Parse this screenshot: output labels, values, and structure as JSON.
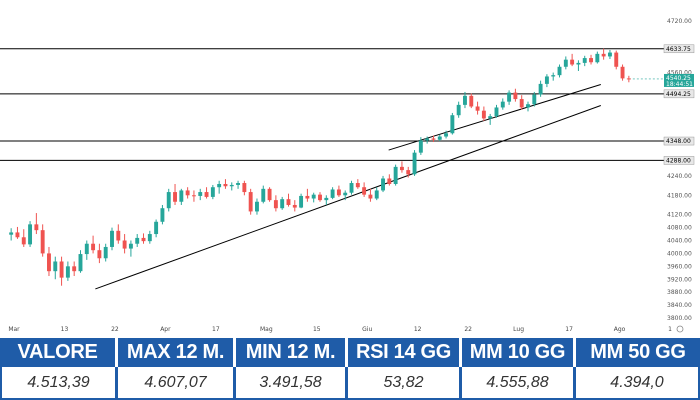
{
  "chart_data": {
    "type": "candlestick",
    "ylim": [
      3800,
      4760
    ],
    "y_ticks": [
      "4720.00",
      "4560.00",
      "4240.00",
      "4180.00",
      "4120.00",
      "4080.00",
      "4040.00",
      "4000.00",
      "3960.00",
      "3920.00",
      "3880.00",
      "3840.00",
      "3800.00"
    ],
    "x_ticks": [
      "Mar",
      "13",
      "22",
      "Apr",
      "17",
      "Mag",
      "15",
      "Giu",
      "12",
      "22",
      "Lug",
      "17",
      "Ago",
      "1"
    ],
    "levels": [
      {
        "value": 4633.75,
        "label": "4633.75"
      },
      {
        "value": 4494.25,
        "label": "4494.25"
      },
      {
        "value": 4348.0,
        "label": "4348.00"
      },
      {
        "value": 4288.0,
        "label": "4288.00"
      }
    ],
    "last_price": {
      "value": 4540.25,
      "label": "4540.25",
      "sublabel": "18:44:51",
      "color": "#26a69a"
    },
    "trendlines": [
      {
        "from": [
          0.14,
          3890
        ],
        "to": [
          0.95,
          4458
        ]
      },
      {
        "from": [
          0.61,
          4320
        ],
        "to": [
          0.95,
          4523
        ]
      }
    ],
    "candles": [
      {
        "o": 4058,
        "h": 4078,
        "l": 4040,
        "c": 4065
      },
      {
        "o": 4065,
        "h": 4082,
        "l": 4045,
        "c": 4050
      },
      {
        "o": 4050,
        "h": 4075,
        "l": 4020,
        "c": 4028
      },
      {
        "o": 4028,
        "h": 4100,
        "l": 4020,
        "c": 4090
      },
      {
        "o": 4090,
        "h": 4125,
        "l": 4060,
        "c": 4072
      },
      {
        "o": 4072,
        "h": 4090,
        "l": 3990,
        "c": 4000
      },
      {
        "o": 4000,
        "h": 4020,
        "l": 3930,
        "c": 3945
      },
      {
        "o": 3945,
        "h": 3990,
        "l": 3920,
        "c": 3975
      },
      {
        "o": 3975,
        "h": 3990,
        "l": 3900,
        "c": 3925
      },
      {
        "o": 3925,
        "h": 3975,
        "l": 3915,
        "c": 3960
      },
      {
        "o": 3960,
        "h": 3975,
        "l": 3930,
        "c": 3945
      },
      {
        "o": 3945,
        "h": 4010,
        "l": 3940,
        "c": 3998
      },
      {
        "o": 3998,
        "h": 4040,
        "l": 3980,
        "c": 4030
      },
      {
        "o": 4030,
        "h": 4055,
        "l": 4000,
        "c": 4010
      },
      {
        "o": 4010,
        "h": 4030,
        "l": 3970,
        "c": 3985
      },
      {
        "o": 3985,
        "h": 4030,
        "l": 3975,
        "c": 4020
      },
      {
        "o": 4020,
        "h": 4080,
        "l": 4010,
        "c": 4070
      },
      {
        "o": 4070,
        "h": 4090,
        "l": 4030,
        "c": 4040
      },
      {
        "o": 4040,
        "h": 4060,
        "l": 4000,
        "c": 4015
      },
      {
        "o": 4015,
        "h": 4040,
        "l": 3990,
        "c": 4030
      },
      {
        "o": 4030,
        "h": 4060,
        "l": 4020,
        "c": 4048
      },
      {
        "o": 4048,
        "h": 4062,
        "l": 4030,
        "c": 4038
      },
      {
        "o": 4038,
        "h": 4070,
        "l": 4030,
        "c": 4060
      },
      {
        "o": 4060,
        "h": 4105,
        "l": 4050,
        "c": 4098
      },
      {
        "o": 4098,
        "h": 4150,
        "l": 4090,
        "c": 4140
      },
      {
        "o": 4140,
        "h": 4200,
        "l": 4130,
        "c": 4190
      },
      {
        "o": 4190,
        "h": 4215,
        "l": 4150,
        "c": 4160
      },
      {
        "o": 4160,
        "h": 4200,
        "l": 4150,
        "c": 4195
      },
      {
        "o": 4195,
        "h": 4205,
        "l": 4170,
        "c": 4180
      },
      {
        "o": 4180,
        "h": 4195,
        "l": 4160,
        "c": 4178
      },
      {
        "o": 4178,
        "h": 4200,
        "l": 4165,
        "c": 4190
      },
      {
        "o": 4190,
        "h": 4205,
        "l": 4170,
        "c": 4175
      },
      {
        "o": 4175,
        "h": 4212,
        "l": 4168,
        "c": 4205
      },
      {
        "o": 4205,
        "h": 4225,
        "l": 4185,
        "c": 4215
      },
      {
        "o": 4215,
        "h": 4230,
        "l": 4200,
        "c": 4208
      },
      {
        "o": 4208,
        "h": 4220,
        "l": 4195,
        "c": 4212
      },
      {
        "o": 4212,
        "h": 4225,
        "l": 4200,
        "c": 4218
      },
      {
        "o": 4218,
        "h": 4225,
        "l": 4180,
        "c": 4190
      },
      {
        "o": 4190,
        "h": 4200,
        "l": 4120,
        "c": 4130
      },
      {
        "o": 4130,
        "h": 4170,
        "l": 4120,
        "c": 4160
      },
      {
        "o": 4160,
        "h": 4210,
        "l": 4155,
        "c": 4200
      },
      {
        "o": 4200,
        "h": 4205,
        "l": 4160,
        "c": 4165
      },
      {
        "o": 4165,
        "h": 4180,
        "l": 4130,
        "c": 4140
      },
      {
        "o": 4140,
        "h": 4175,
        "l": 4135,
        "c": 4168
      },
      {
        "o": 4168,
        "h": 4185,
        "l": 4145,
        "c": 4150
      },
      {
        "o": 4150,
        "h": 4165,
        "l": 4130,
        "c": 4142
      },
      {
        "o": 4142,
        "h": 4185,
        "l": 4140,
        "c": 4178
      },
      {
        "o": 4178,
        "h": 4200,
        "l": 4160,
        "c": 4170
      },
      {
        "o": 4170,
        "h": 4188,
        "l": 4158,
        "c": 4182
      },
      {
        "o": 4182,
        "h": 4190,
        "l": 4160,
        "c": 4165
      },
      {
        "o": 4165,
        "h": 4180,
        "l": 4150,
        "c": 4172
      },
      {
        "o": 4172,
        "h": 4205,
        "l": 4168,
        "c": 4198
      },
      {
        "o": 4198,
        "h": 4210,
        "l": 4175,
        "c": 4180
      },
      {
        "o": 4180,
        "h": 4195,
        "l": 4165,
        "c": 4188
      },
      {
        "o": 4188,
        "h": 4225,
        "l": 4182,
        "c": 4218
      },
      {
        "o": 4218,
        "h": 4230,
        "l": 4200,
        "c": 4205
      },
      {
        "o": 4205,
        "h": 4220,
        "l": 4175,
        "c": 4182
      },
      {
        "o": 4182,
        "h": 4200,
        "l": 4160,
        "c": 4170
      },
      {
        "o": 4170,
        "h": 4205,
        "l": 4165,
        "c": 4195
      },
      {
        "o": 4195,
        "h": 4240,
        "l": 4190,
        "c": 4232
      },
      {
        "o": 4232,
        "h": 4245,
        "l": 4210,
        "c": 4215
      },
      {
        "o": 4215,
        "h": 4275,
        "l": 4210,
        "c": 4268
      },
      {
        "o": 4268,
        "h": 4285,
        "l": 4250,
        "c": 4258
      },
      {
        "o": 4258,
        "h": 4268,
        "l": 4235,
        "c": 4245
      },
      {
        "o": 4245,
        "h": 4320,
        "l": 4240,
        "c": 4312
      },
      {
        "o": 4312,
        "h": 4360,
        "l": 4305,
        "c": 4350
      },
      {
        "o": 4350,
        "h": 4362,
        "l": 4340,
        "c": 4356
      },
      {
        "o": 4356,
        "h": 4365,
        "l": 4345,
        "c": 4352
      },
      {
        "o": 4352,
        "h": 4368,
        "l": 4348,
        "c": 4362
      },
      {
        "o": 4362,
        "h": 4380,
        "l": 4356,
        "c": 4372
      },
      {
        "o": 4372,
        "h": 4435,
        "l": 4368,
        "c": 4428
      },
      {
        "o": 4428,
        "h": 4470,
        "l": 4420,
        "c": 4460
      },
      {
        "o": 4460,
        "h": 4500,
        "l": 4450,
        "c": 4488
      },
      {
        "o": 4488,
        "h": 4495,
        "l": 4450,
        "c": 4455
      },
      {
        "o": 4455,
        "h": 4470,
        "l": 4430,
        "c": 4442
      },
      {
        "o": 4442,
        "h": 4455,
        "l": 4410,
        "c": 4418
      },
      {
        "o": 4418,
        "h": 4432,
        "l": 4398,
        "c": 4425
      },
      {
        "o": 4425,
        "h": 4460,
        "l": 4420,
        "c": 4452
      },
      {
        "o": 4452,
        "h": 4480,
        "l": 4445,
        "c": 4470
      },
      {
        "o": 4470,
        "h": 4505,
        "l": 4460,
        "c": 4498
      },
      {
        "o": 4498,
        "h": 4510,
        "l": 4470,
        "c": 4478
      },
      {
        "o": 4478,
        "h": 4490,
        "l": 4445,
        "c": 4452
      },
      {
        "o": 4452,
        "h": 4470,
        "l": 4440,
        "c": 4462
      },
      {
        "o": 4462,
        "h": 4500,
        "l": 4455,
        "c": 4492
      },
      {
        "o": 4492,
        "h": 4535,
        "l": 4485,
        "c": 4525
      },
      {
        "o": 4525,
        "h": 4555,
        "l": 4515,
        "c": 4548
      },
      {
        "o": 4548,
        "h": 4560,
        "l": 4535,
        "c": 4552
      },
      {
        "o": 4552,
        "h": 4585,
        "l": 4545,
        "c": 4578
      },
      {
        "o": 4578,
        "h": 4610,
        "l": 4570,
        "c": 4600
      },
      {
        "o": 4600,
        "h": 4618,
        "l": 4580,
        "c": 4585
      },
      {
        "o": 4585,
        "h": 4598,
        "l": 4565,
        "c": 4590
      },
      {
        "o": 4590,
        "h": 4612,
        "l": 4580,
        "c": 4605
      },
      {
        "o": 4605,
        "h": 4615,
        "l": 4585,
        "c": 4592
      },
      {
        "o": 4592,
        "h": 4625,
        "l": 4588,
        "c": 4618
      },
      {
        "o": 4618,
        "h": 4634,
        "l": 4600,
        "c": 4610
      },
      {
        "o": 4610,
        "h": 4630,
        "l": 4602,
        "c": 4622
      },
      {
        "o": 4622,
        "h": 4628,
        "l": 4570,
        "c": 4578
      },
      {
        "o": 4578,
        "h": 4585,
        "l": 4535,
        "c": 4542
      },
      {
        "o": 4542,
        "h": 4550,
        "l": 4530,
        "c": 4540
      }
    ]
  },
  "stats": {
    "headers": [
      "VALORE",
      "MAX 12 M.",
      "MIN 12 M.",
      "RSI 14 GG",
      "MM 10 GG",
      "MM 50 GG"
    ],
    "values": [
      "4.513,39",
      "4.607,07",
      "3.491,58",
      "53,82",
      "4.555,88",
      "4.394,0"
    ]
  },
  "colors": {
    "up": "#26a69a",
    "down": "#ef5350",
    "accent": "#1f5ca8"
  }
}
